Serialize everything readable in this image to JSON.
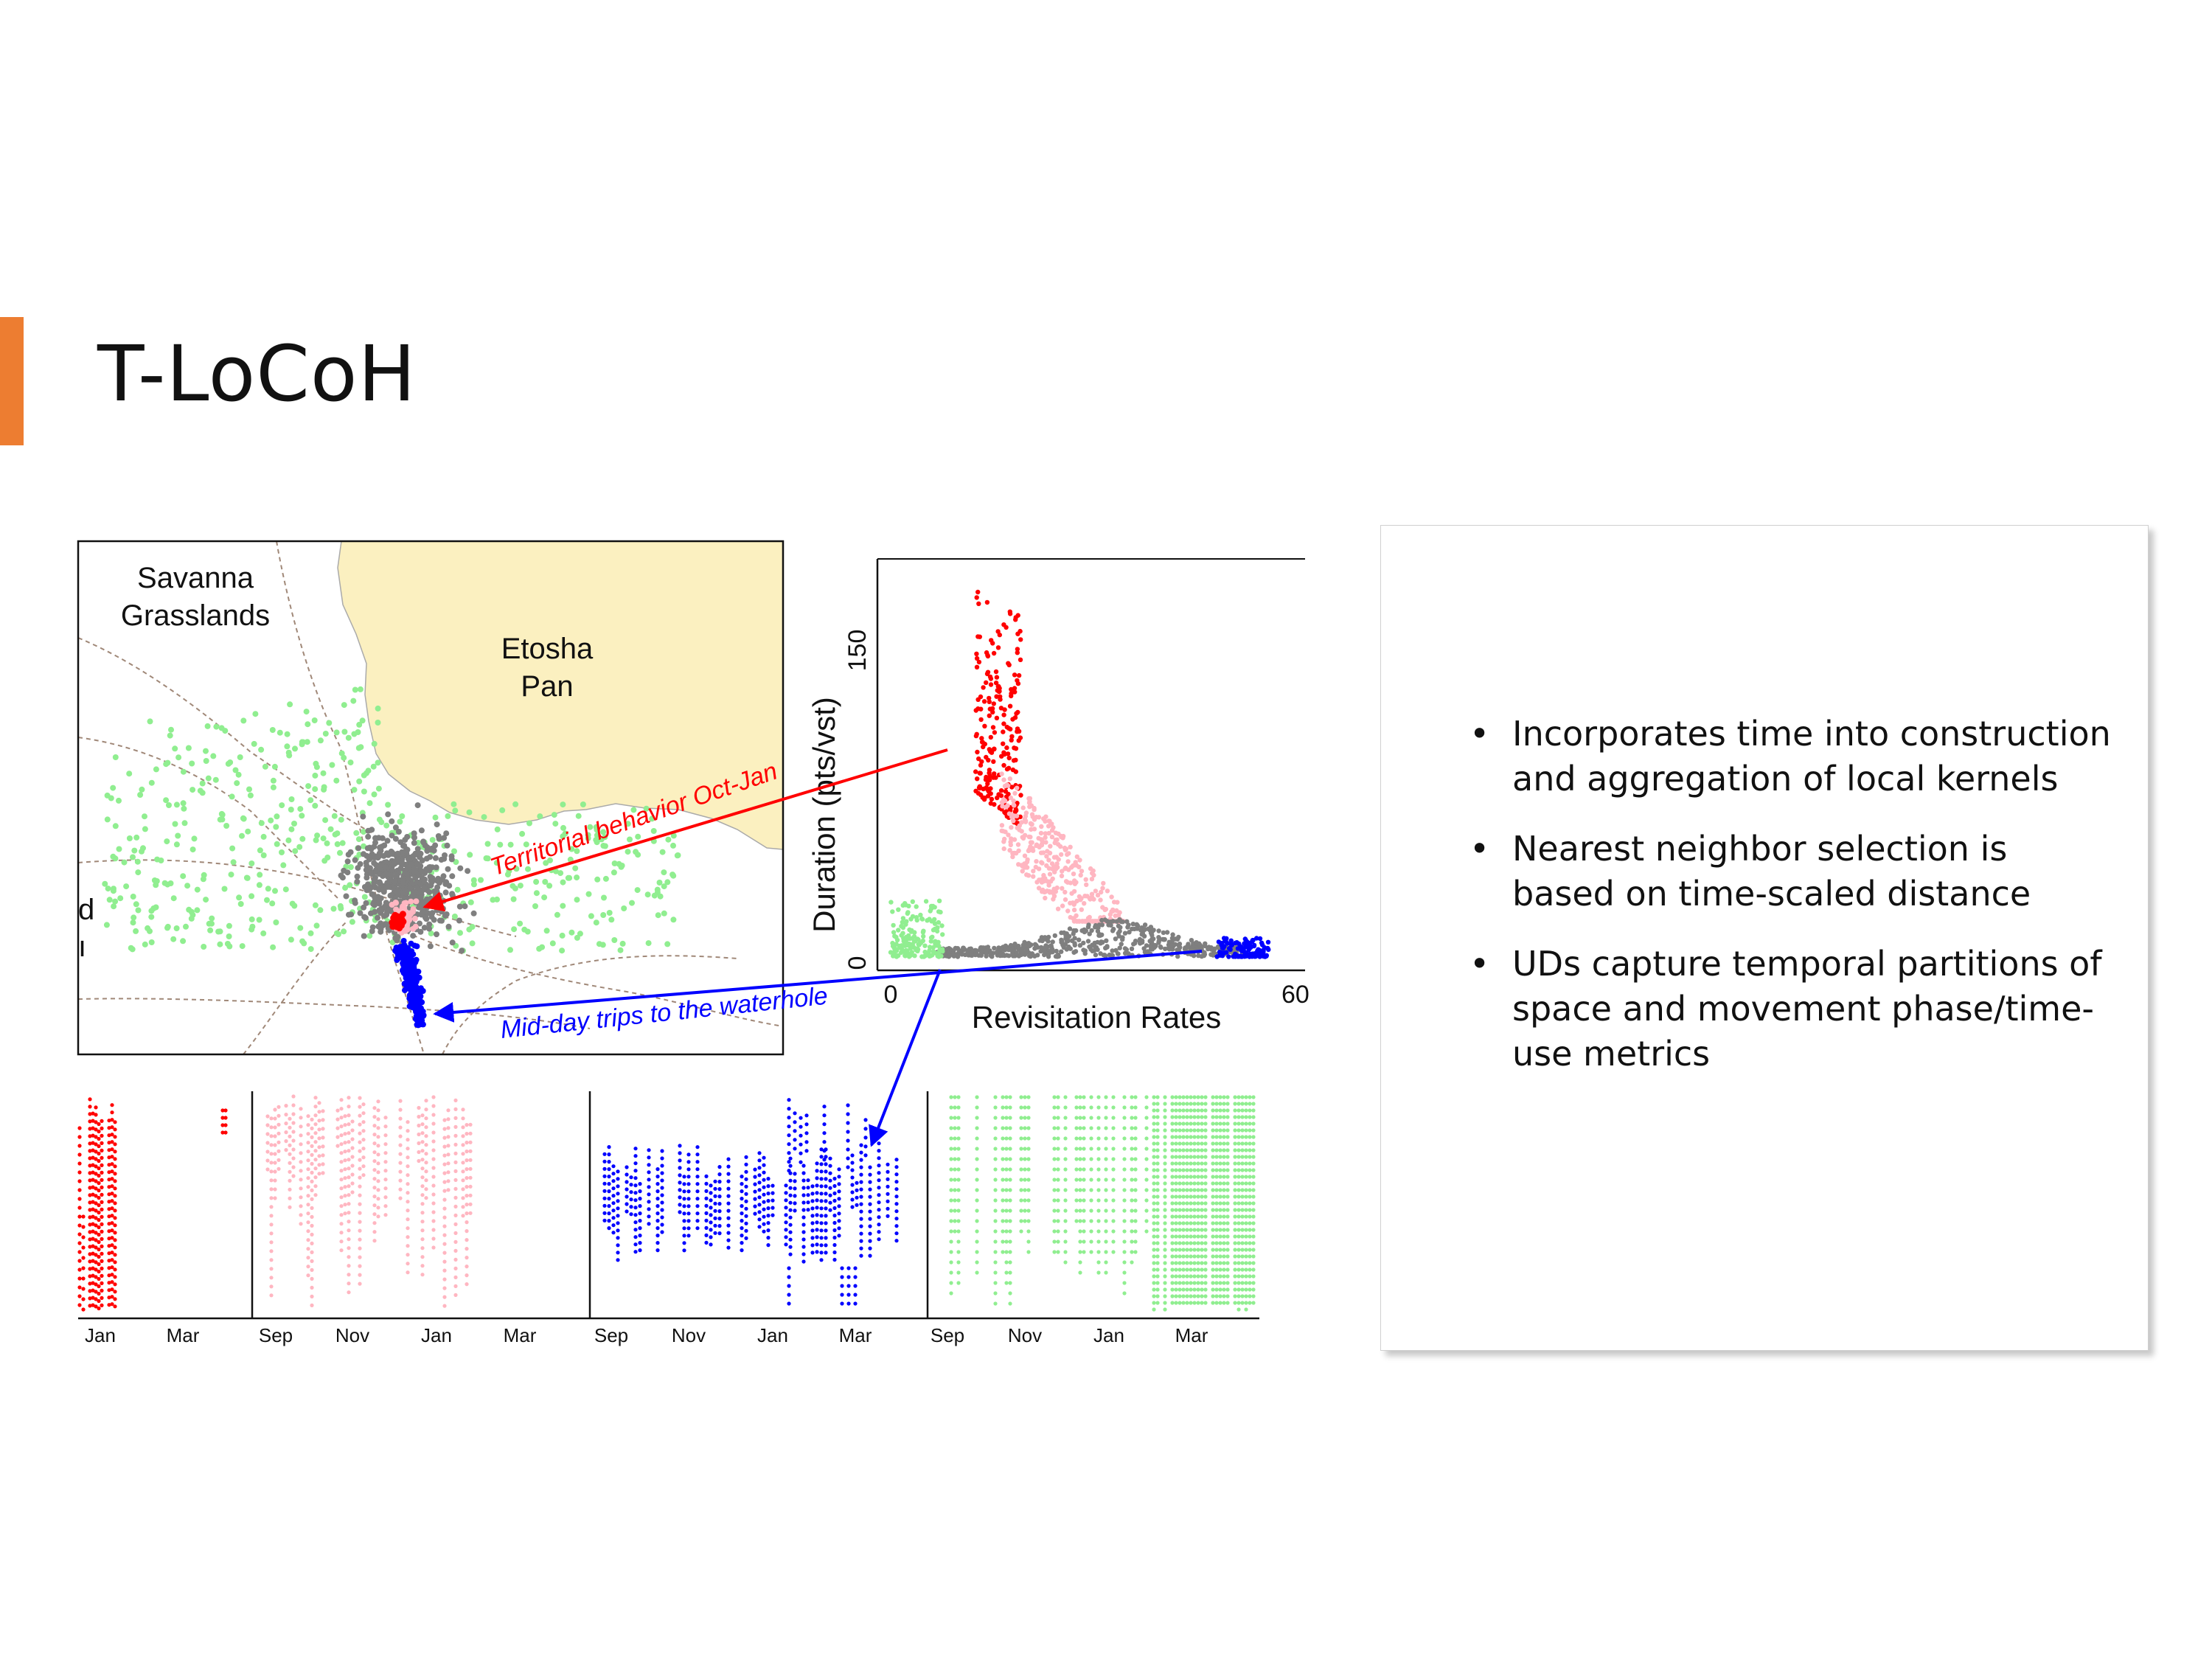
{
  "slide": {
    "title": "T-LoCoH",
    "accent_color": "#ED7D31"
  },
  "map": {
    "label_savanna_line1": "Savanna",
    "label_savanna_line2": "Grasslands",
    "label_pan_line1": "Etosha",
    "label_pan_line2": "Pan",
    "cut_label_1": "d",
    "cut_label_2": "ı",
    "annotation_red": "Territorial behavior Oct-Jan",
    "annotation_blue": "Mid-day trips to the waterhole",
    "pan_color": "#FBF0C0"
  },
  "chart_data": [
    {
      "type": "scatter",
      "xlabel": "Revisitation Rates",
      "ylabel": "Duration (pts/vst)",
      "x_ticks": [
        "0",
        "60"
      ],
      "y_ticks": [
        "0",
        "150"
      ],
      "xlim": [
        0,
        60
      ],
      "ylim": [
        0,
        185
      ],
      "series": [
        {
          "color": "#FF0000",
          "x_range": [
            13,
            20
          ],
          "y_range": [
            65,
            185
          ]
        },
        {
          "color": "#FFB6C1",
          "x_range": [
            17,
            36
          ],
          "y_range": [
            20,
            95
          ]
        },
        {
          "color": "#7F7F7F",
          "x_range": [
            7,
            54
          ],
          "y_range": [
            3,
            20
          ]
        },
        {
          "color": "#90EE90",
          "x_range": [
            0,
            8
          ],
          "y_range": [
            3,
            30
          ]
        },
        {
          "color": "#0000FF",
          "x_range": [
            50,
            58
          ],
          "y_range": [
            3,
            12
          ]
        }
      ]
    },
    {
      "type": "scatter",
      "panels": [
        {
          "color": "#FF0000",
          "x_ticks": [
            "Jan",
            "Mar"
          ]
        },
        {
          "color": "#FFB6C1",
          "x_ticks": [
            "Sep",
            "Nov",
            "Jan",
            "Mar"
          ]
        },
        {
          "color": "#0000FF",
          "x_ticks": [
            "Sep",
            "Nov",
            "Jan",
            "Mar"
          ]
        },
        {
          "color": "#90EE90",
          "x_ticks": [
            "Sep",
            "Nov",
            "Jan",
            "Mar"
          ]
        }
      ]
    }
  ],
  "bullets": [
    "Incorporates time into construction and aggregation of local kernels",
    "Nearest neighbor selection is based on time-scaled distance",
    "UDs capture temporal partitions of space and movement phase/time-use metrics"
  ],
  "bullet_glyph": "•"
}
